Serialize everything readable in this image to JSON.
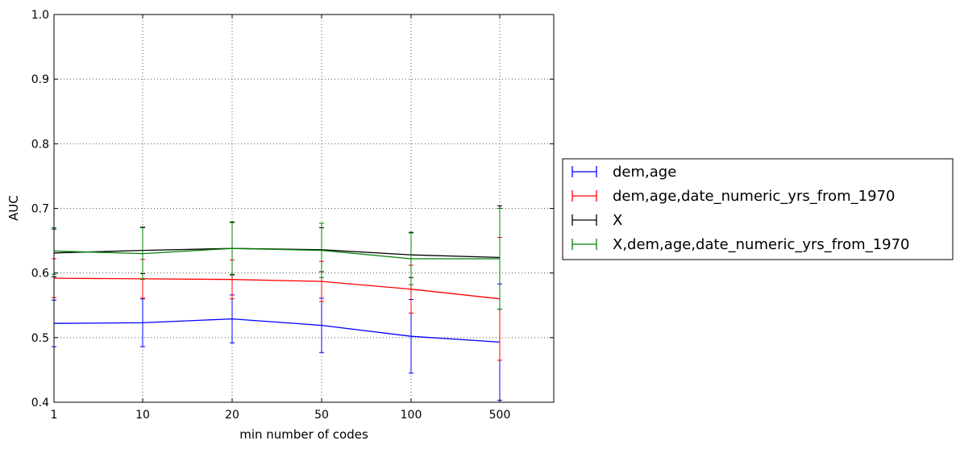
{
  "chart_data": {
    "type": "line",
    "xlabel": "min number of codes",
    "ylabel": "AUC",
    "categories": [
      "1",
      "10",
      "20",
      "50",
      "100",
      "500"
    ],
    "ylim": [
      0.4,
      1.0
    ],
    "yticks": [
      "0.4",
      "0.5",
      "0.6",
      "0.7",
      "0.8",
      "0.9",
      "1.0"
    ],
    "grid": true,
    "legend_position": "right-outside",
    "series": [
      {
        "name": "dem,age",
        "color": "#0000ff",
        "values": [
          0.522,
          0.523,
          0.529,
          0.519,
          0.502,
          0.493
        ],
        "errors": [
          0.036,
          0.037,
          0.037,
          0.042,
          0.057,
          0.09
        ]
      },
      {
        "name": "dem,age,date_numeric_yrs_from_1970",
        "color": "#ff0000",
        "values": [
          0.592,
          0.591,
          0.59,
          0.587,
          0.575,
          0.56
        ],
        "errors": [
          0.03,
          0.03,
          0.03,
          0.031,
          0.037,
          0.095
        ]
      },
      {
        "name": "X",
        "color": "#000000",
        "values": [
          0.631,
          0.635,
          0.638,
          0.636,
          0.628,
          0.624
        ],
        "errors": [
          0.037,
          0.036,
          0.041,
          0.034,
          0.035,
          0.08
        ]
      },
      {
        "name": "X,dem,age,date_numeric_yrs_from_1970",
        "color": "#008000",
        "values": [
          0.634,
          0.63,
          0.638,
          0.635,
          0.622,
          0.622
        ],
        "errors": [
          0.036,
          0.04,
          0.04,
          0.042,
          0.04,
          0.078
        ]
      }
    ]
  }
}
